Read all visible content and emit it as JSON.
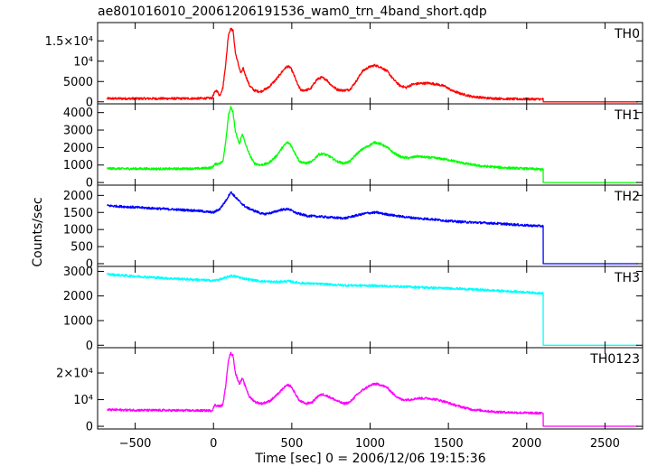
{
  "chart_data": {
    "type": "line",
    "title": "ae801016010_20061206191536_wam0_trn_4band_short.qdp",
    "xlabel": "Time [sec] 0 = 2006/12/06 19:15:36",
    "ylabel": "Counts/sec",
    "xlim": [
      -740,
      2740
    ],
    "x_ticks": [
      -500,
      0,
      500,
      1000,
      1500,
      2000,
      2500
    ],
    "x_tick_labels": [
      "−500",
      "0",
      "500",
      "1000",
      "1500",
      "2000",
      "2500"
    ],
    "grid": false,
    "panels": [
      {
        "name": "TH0",
        "color": "#ff0000",
        "ylim": [
          -500,
          19500
        ],
        "y_ticks": [
          0,
          5000,
          10000,
          15000
        ],
        "y_tick_labels": [
          "0",
          "5000",
          "10⁴",
          "1.5×10⁴"
        ],
        "points": [
          [
            -680,
            800
          ],
          [
            -400,
            800
          ],
          [
            -100,
            820
          ],
          [
            -10,
            900
          ],
          [
            5,
            2200
          ],
          [
            20,
            2800
          ],
          [
            40,
            1500
          ],
          [
            60,
            3500
          ],
          [
            80,
            10000
          ],
          [
            95,
            16500
          ],
          [
            110,
            18000
          ],
          [
            125,
            17500
          ],
          [
            140,
            12000
          ],
          [
            160,
            9000
          ],
          [
            175,
            7000
          ],
          [
            190,
            8200
          ],
          [
            205,
            6500
          ],
          [
            230,
            4000
          ],
          [
            260,
            2800
          ],
          [
            300,
            2500
          ],
          [
            350,
            3500
          ],
          [
            400,
            5500
          ],
          [
            450,
            8000
          ],
          [
            470,
            8700
          ],
          [
            490,
            8500
          ],
          [
            510,
            7000
          ],
          [
            540,
            4000
          ],
          [
            560,
            2800
          ],
          [
            590,
            2900
          ],
          [
            620,
            3200
          ],
          [
            660,
            5500
          ],
          [
            690,
            6000
          ],
          [
            720,
            5500
          ],
          [
            750,
            4200
          ],
          [
            790,
            3000
          ],
          [
            830,
            2800
          ],
          [
            870,
            3000
          ],
          [
            910,
            5000
          ],
          [
            950,
            7500
          ],
          [
            990,
            8500
          ],
          [
            1030,
            9000
          ],
          [
            1070,
            8500
          ],
          [
            1110,
            7500
          ],
          [
            1150,
            5500
          ],
          [
            1190,
            4000
          ],
          [
            1230,
            3500
          ],
          [
            1270,
            4300
          ],
          [
            1310,
            4500
          ],
          [
            1370,
            4600
          ],
          [
            1430,
            4300
          ],
          [
            1480,
            3800
          ],
          [
            1520,
            2800
          ],
          [
            1580,
            2000
          ],
          [
            1650,
            1300
          ],
          [
            1750,
            900
          ],
          [
            1900,
            700
          ],
          [
            2105,
            650
          ],
          [
            2106,
            0
          ],
          [
            2710,
            0
          ]
        ]
      },
      {
        "name": "TH1",
        "color": "#00ff00",
        "ylim": [
          -150,
          4500
        ],
        "y_ticks": [
          0,
          1000,
          2000,
          3000,
          4000
        ],
        "y_tick_labels": [
          "0",
          "1000",
          "2000",
          "3000",
          "4000"
        ],
        "points": [
          [
            -680,
            800
          ],
          [
            -300,
            780
          ],
          [
            -100,
            800
          ],
          [
            -10,
            850
          ],
          [
            10,
            1050
          ],
          [
            40,
            1100
          ],
          [
            60,
            1200
          ],
          [
            80,
            2500
          ],
          [
            95,
            3800
          ],
          [
            110,
            4300
          ],
          [
            125,
            4000
          ],
          [
            140,
            2900
          ],
          [
            165,
            2200
          ],
          [
            185,
            2800
          ],
          [
            200,
            2300
          ],
          [
            230,
            1600
          ],
          [
            260,
            1100
          ],
          [
            300,
            1000
          ],
          [
            350,
            1100
          ],
          [
            400,
            1500
          ],
          [
            440,
            2000
          ],
          [
            470,
            2300
          ],
          [
            490,
            2200
          ],
          [
            520,
            1700
          ],
          [
            550,
            1200
          ],
          [
            590,
            1100
          ],
          [
            630,
            1200
          ],
          [
            670,
            1600
          ],
          [
            700,
            1650
          ],
          [
            740,
            1500
          ],
          [
            790,
            1200
          ],
          [
            830,
            1100
          ],
          [
            870,
            1200
          ],
          [
            910,
            1600
          ],
          [
            950,
            1900
          ],
          [
            990,
            2100
          ],
          [
            1030,
            2300
          ],
          [
            1070,
            2200
          ],
          [
            1110,
            2000
          ],
          [
            1150,
            1700
          ],
          [
            1200,
            1450
          ],
          [
            1250,
            1400
          ],
          [
            1300,
            1500
          ],
          [
            1350,
            1450
          ],
          [
            1420,
            1400
          ],
          [
            1500,
            1300
          ],
          [
            1600,
            1100
          ],
          [
            1700,
            950
          ],
          [
            1850,
            850
          ],
          [
            2105,
            750
          ],
          [
            2106,
            0
          ],
          [
            2710,
            0
          ]
        ]
      },
      {
        "name": "TH2",
        "color": "#0000ff",
        "ylim": [
          -80,
          2300
        ],
        "y_ticks": [
          0,
          500,
          1000,
          1500,
          2000
        ],
        "y_tick_labels": [
          "0",
          "500",
          "1000",
          "1500",
          "2000"
        ],
        "points": [
          [
            -680,
            1700
          ],
          [
            -500,
            1650
          ],
          [
            -300,
            1600
          ],
          [
            -100,
            1550
          ],
          [
            0,
            1500
          ],
          [
            40,
            1600
          ],
          [
            80,
            1850
          ],
          [
            110,
            2100
          ],
          [
            130,
            2000
          ],
          [
            170,
            1800
          ],
          [
            210,
            1650
          ],
          [
            260,
            1550
          ],
          [
            320,
            1450
          ],
          [
            380,
            1500
          ],
          [
            430,
            1580
          ],
          [
            480,
            1600
          ],
          [
            530,
            1480
          ],
          [
            600,
            1400
          ],
          [
            680,
            1380
          ],
          [
            760,
            1350
          ],
          [
            840,
            1330
          ],
          [
            900,
            1400
          ],
          [
            980,
            1480
          ],
          [
            1040,
            1500
          ],
          [
            1100,
            1450
          ],
          [
            1200,
            1380
          ],
          [
            1300,
            1330
          ],
          [
            1400,
            1300
          ],
          [
            1500,
            1250
          ],
          [
            1600,
            1220
          ],
          [
            1700,
            1200
          ],
          [
            1800,
            1180
          ],
          [
            1900,
            1150
          ],
          [
            2000,
            1120
          ],
          [
            2105,
            1100
          ],
          [
            2106,
            0
          ],
          [
            2710,
            0
          ]
        ]
      },
      {
        "name": "TH3",
        "color": "#00ffff",
        "ylim": [
          -100,
          3200
        ],
        "y_ticks": [
          0,
          1000,
          2000,
          3000
        ],
        "y_tick_labels": [
          "0",
          "1000",
          "2000",
          "3000"
        ],
        "points": [
          [
            -680,
            2880
          ],
          [
            -500,
            2800
          ],
          [
            -300,
            2720
          ],
          [
            -100,
            2660
          ],
          [
            0,
            2620
          ],
          [
            60,
            2700
          ],
          [
            110,
            2820
          ],
          [
            150,
            2780
          ],
          [
            200,
            2700
          ],
          [
            300,
            2600
          ],
          [
            400,
            2570
          ],
          [
            480,
            2600
          ],
          [
            560,
            2520
          ],
          [
            700,
            2480
          ],
          [
            850,
            2430
          ],
          [
            1000,
            2420
          ],
          [
            1100,
            2400
          ],
          [
            1250,
            2370
          ],
          [
            1400,
            2330
          ],
          [
            1550,
            2300
          ],
          [
            1700,
            2250
          ],
          [
            1850,
            2200
          ],
          [
            2000,
            2150
          ],
          [
            2105,
            2100
          ],
          [
            2106,
            0
          ],
          [
            2710,
            0
          ]
        ]
      },
      {
        "name": "TH0123",
        "color": "#ff00ff",
        "ylim": [
          -1000,
          29500
        ],
        "y_ticks": [
          0,
          10000,
          20000
        ],
        "y_tick_labels": [
          "0",
          "10⁴",
          "2×10⁴"
        ],
        "points": [
          [
            -680,
            6200
          ],
          [
            -400,
            6000
          ],
          [
            -100,
            5900
          ],
          [
            -10,
            5900
          ],
          [
            10,
            8000
          ],
          [
            40,
            7500
          ],
          [
            60,
            8000
          ],
          [
            80,
            16000
          ],
          [
            95,
            25000
          ],
          [
            110,
            27500
          ],
          [
            125,
            26500
          ],
          [
            140,
            20000
          ],
          [
            165,
            16000
          ],
          [
            185,
            18000
          ],
          [
            200,
            15500
          ],
          [
            230,
            11000
          ],
          [
            270,
            9000
          ],
          [
            310,
            8500
          ],
          [
            360,
            9500
          ],
          [
            410,
            12000
          ],
          [
            450,
            14500
          ],
          [
            475,
            15500
          ],
          [
            495,
            15000
          ],
          [
            520,
            12500
          ],
          [
            550,
            9500
          ],
          [
            590,
            8500
          ],
          [
            630,
            9000
          ],
          [
            670,
            11500
          ],
          [
            700,
            12000
          ],
          [
            740,
            11000
          ],
          [
            790,
            9500
          ],
          [
            830,
            8500
          ],
          [
            870,
            9000
          ],
          [
            910,
            11500
          ],
          [
            950,
            13500
          ],
          [
            990,
            15000
          ],
          [
            1030,
            16000
          ],
          [
            1070,
            15500
          ],
          [
            1110,
            14500
          ],
          [
            1150,
            12000
          ],
          [
            1200,
            10000
          ],
          [
            1250,
            10000
          ],
          [
            1300,
            10500
          ],
          [
            1370,
            10500
          ],
          [
            1430,
            10000
          ],
          [
            1490,
            9000
          ],
          [
            1550,
            7800
          ],
          [
            1650,
            6300
          ],
          [
            1800,
            5400
          ],
          [
            1950,
            5100
          ],
          [
            2105,
            4900
          ],
          [
            2106,
            0
          ],
          [
            2710,
            0
          ]
        ]
      }
    ]
  }
}
